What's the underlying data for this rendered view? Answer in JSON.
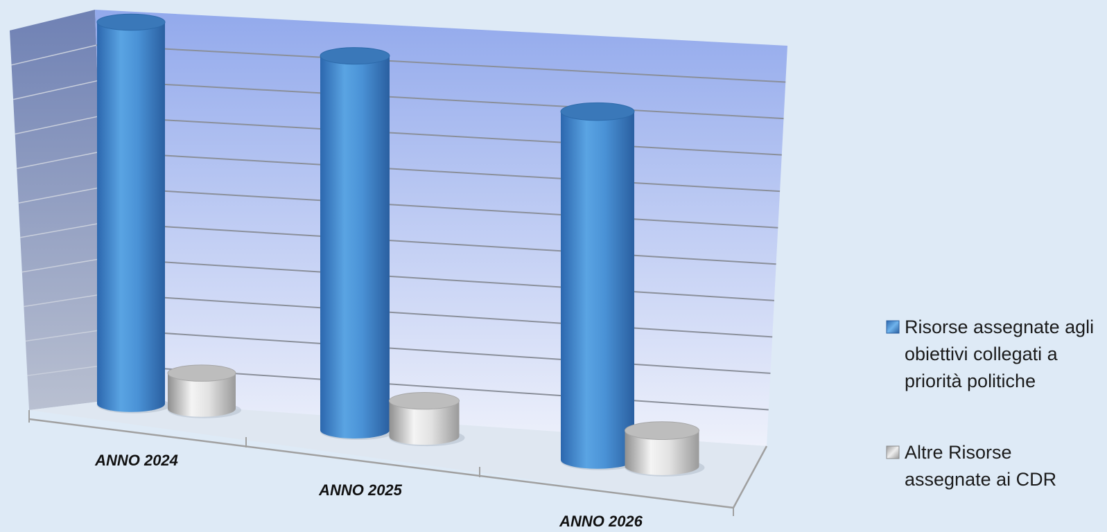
{
  "colors": {
    "background": "#deeaf6",
    "series_primary": "#3f86cc",
    "series_secondary": "#d2d2d2"
  },
  "chart_data": {
    "type": "bar",
    "style": "3d-cylinder",
    "categories": [
      "ANNO 2024",
      "ANNO 2025",
      "ANNO 2026"
    ],
    "series": [
      {
        "name": "Risorse assegnate agli obiettivi collegati a priorità politiche",
        "values": [
          10.3,
          10.1,
          9.4
        ]
      },
      {
        "name": "Altre Risorse assegnate ai CDR",
        "values": [
          1.6,
          1.6,
          1.6
        ]
      }
    ],
    "ylim": [
      0,
      11
    ],
    "grid": true,
    "legend": "right"
  }
}
